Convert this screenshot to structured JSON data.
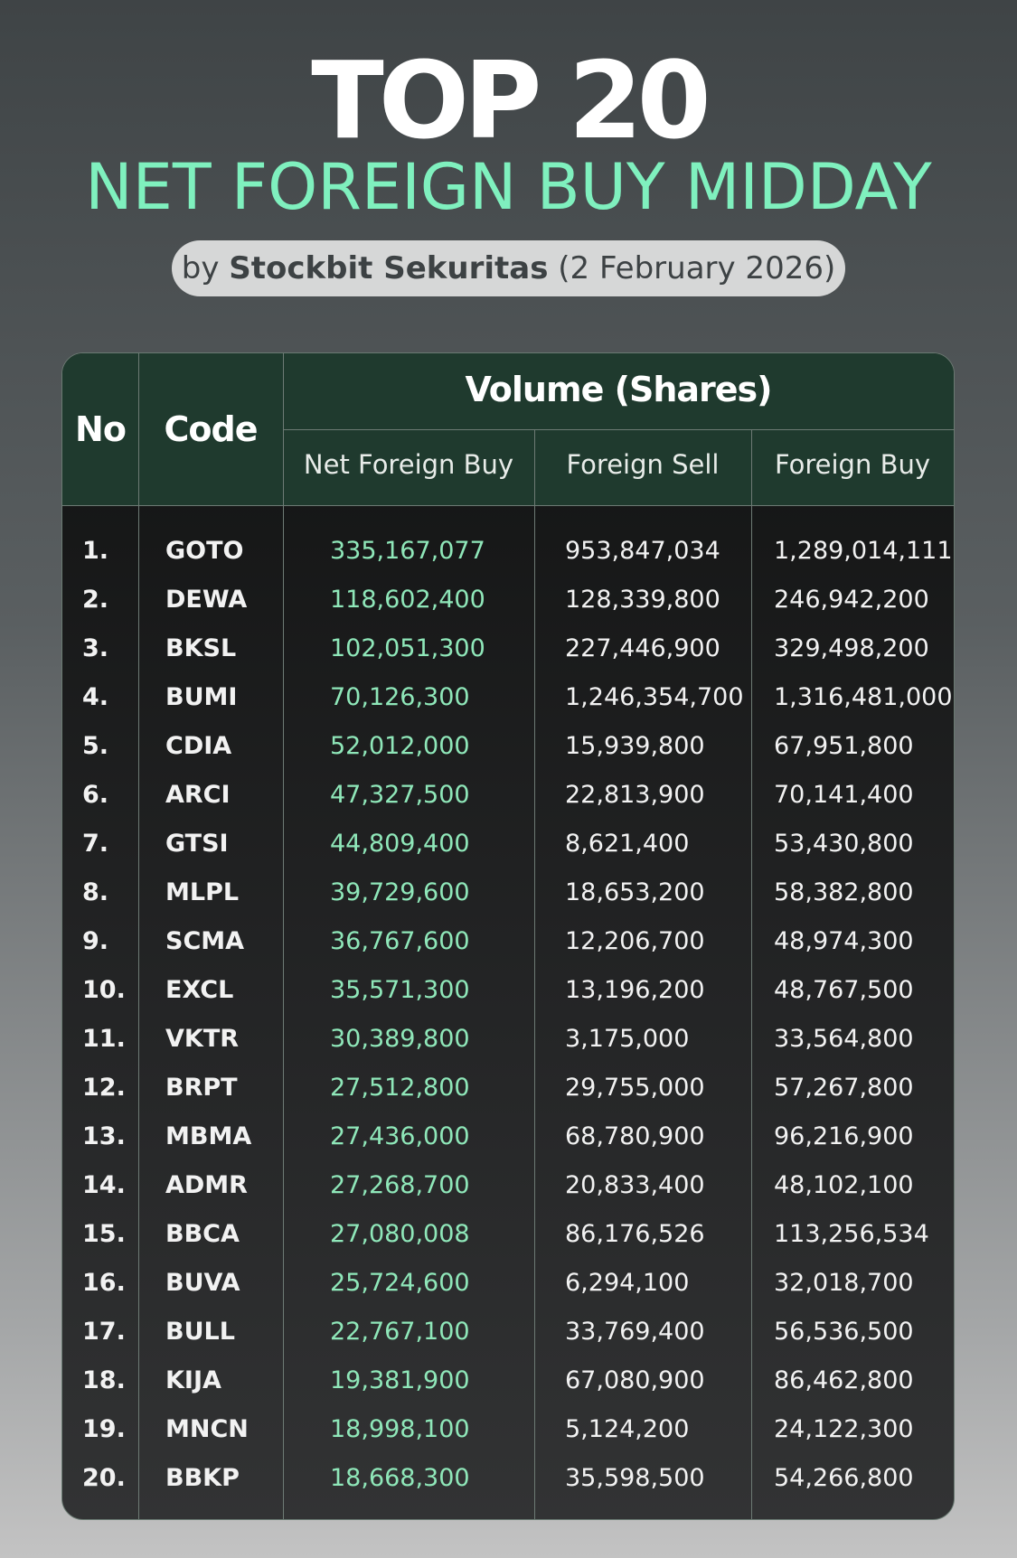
{
  "header": {
    "title": "TOP 20",
    "subtitle": "NET FOREIGN BUY MIDDAY",
    "byline_prefix": "by",
    "byline_brand": "Stockbit Sekuritas",
    "byline_date": "(2 February 2026)"
  },
  "colors": {
    "accent_green": "#7ff0be",
    "net_buy_text": "#8fe7b9",
    "header_bg": "#1f3a2e"
  },
  "table": {
    "col_no": "No",
    "col_code": "Code",
    "group_header": "Volume (Shares)",
    "col_net": "Net Foreign Buy",
    "col_sell": "Foreign Sell",
    "col_buy": "Foreign Buy",
    "rows": [
      {
        "no": "1.",
        "code": "GOTO",
        "net": "335,167,077",
        "sell": "953,847,034",
        "buy": "1,289,014,111"
      },
      {
        "no": "2.",
        "code": "DEWA",
        "net": "118,602,400",
        "sell": "128,339,800",
        "buy": "246,942,200"
      },
      {
        "no": "3.",
        "code": "BKSL",
        "net": "102,051,300",
        "sell": "227,446,900",
        "buy": "329,498,200"
      },
      {
        "no": "4.",
        "code": "BUMI",
        "net": "70,126,300",
        "sell": "1,246,354,700",
        "buy": "1,316,481,000"
      },
      {
        "no": "5.",
        "code": "CDIA",
        "net": "52,012,000",
        "sell": "15,939,800",
        "buy": "67,951,800"
      },
      {
        "no": "6.",
        "code": "ARCI",
        "net": "47,327,500",
        "sell": "22,813,900",
        "buy": "70,141,400"
      },
      {
        "no": "7.",
        "code": "GTSI",
        "net": "44,809,400",
        "sell": "8,621,400",
        "buy": "53,430,800"
      },
      {
        "no": "8.",
        "code": "MLPL",
        "net": "39,729,600",
        "sell": "18,653,200",
        "buy": "58,382,800"
      },
      {
        "no": "9.",
        "code": "SCMA",
        "net": "36,767,600",
        "sell": "12,206,700",
        "buy": "48,974,300"
      },
      {
        "no": "10.",
        "code": "EXCL",
        "net": "35,571,300",
        "sell": "13,196,200",
        "buy": "48,767,500"
      },
      {
        "no": "11.",
        "code": "VKTR",
        "net": "30,389,800",
        "sell": "3,175,000",
        "buy": "33,564,800"
      },
      {
        "no": "12.",
        "code": "BRPT",
        "net": "27,512,800",
        "sell": "29,755,000",
        "buy": "57,267,800"
      },
      {
        "no": "13.",
        "code": "MBMA",
        "net": "27,436,000",
        "sell": "68,780,900",
        "buy": "96,216,900"
      },
      {
        "no": "14.",
        "code": "ADMR",
        "net": "27,268,700",
        "sell": "20,833,400",
        "buy": "48,102,100"
      },
      {
        "no": "15.",
        "code": "BBCA",
        "net": "27,080,008",
        "sell": "86,176,526",
        "buy": "113,256,534"
      },
      {
        "no": "16.",
        "code": "BUVA",
        "net": "25,724,600",
        "sell": "6,294,100",
        "buy": "32,018,700"
      },
      {
        "no": "17.",
        "code": "BULL",
        "net": "22,767,100",
        "sell": "33,769,400",
        "buy": "56,536,500"
      },
      {
        "no": "18.",
        "code": "KIJA",
        "net": "19,381,900",
        "sell": "67,080,900",
        "buy": "86,462,800"
      },
      {
        "no": "19.",
        "code": "MNCN",
        "net": "18,998,100",
        "sell": "5,124,200",
        "buy": "24,122,300"
      },
      {
        "no": "20.",
        "code": "BBKP",
        "net": "18,668,300",
        "sell": "35,598,500",
        "buy": "54,266,800"
      }
    ]
  }
}
